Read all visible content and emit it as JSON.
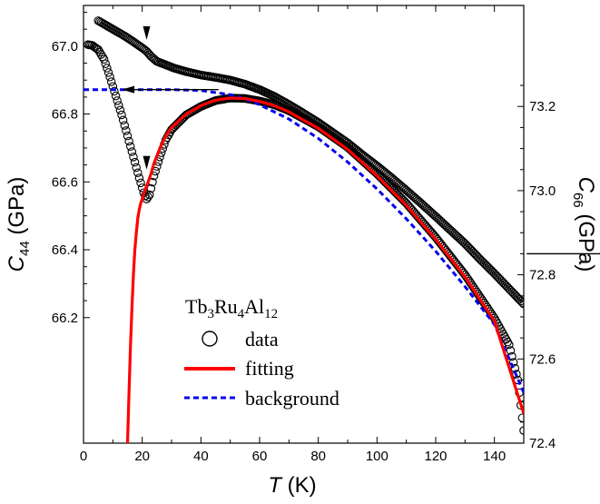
{
  "chart_data": {
    "type": "scatter",
    "x_axis": {
      "label_italic": "T",
      "label_unit": "(K)",
      "range": [
        0,
        150
      ],
      "ticks": [
        0,
        20,
        40,
        60,
        80,
        100,
        120,
        140
      ]
    },
    "y_left": {
      "label_italic": "C",
      "label_sub": "44",
      "label_unit": "(GPa)",
      "range": [
        65.83,
        67.12
      ],
      "ticks": [
        "66.2",
        "66.4",
        "66.6",
        "66.8",
        "67.0"
      ]
    },
    "y_right": {
      "label_italic": "C",
      "label_sub": "66",
      "label_unit": "(GPa)",
      "range": [
        72.4,
        73.44
      ],
      "ticks": [
        "72.4",
        "72.6",
        "72.8",
        "73.0",
        "73.2"
      ]
    },
    "legend": {
      "title_parts": [
        "Tb",
        "3",
        "Ru",
        "4",
        "Al",
        "12"
      ],
      "entries": [
        "data",
        "fitting",
        "background"
      ]
    },
    "series": [
      {
        "name": "data",
        "axis": "left",
        "marker": "open-circle",
        "color": "#000000",
        "x": [
          5,
          8,
          11,
          14,
          17,
          20,
          21.5,
          23,
          25,
          28,
          31,
          35,
          40,
          45,
          50,
          55,
          60,
          65,
          70,
          75,
          80,
          85,
          90,
          95,
          100,
          105,
          110,
          115,
          120,
          125,
          130,
          135,
          140,
          145,
          150
        ],
        "y": [
          67.075,
          67.06,
          67.045,
          67.03,
          67.013,
          66.995,
          66.985,
          66.97,
          66.955,
          66.945,
          66.935,
          66.925,
          66.915,
          66.908,
          66.9,
          66.888,
          66.872,
          66.852,
          66.828,
          66.802,
          66.775,
          66.745,
          66.715,
          66.68,
          66.647,
          66.612,
          66.575,
          66.537,
          66.498,
          66.458,
          66.418,
          66.373,
          66.33,
          66.285,
          66.24
        ]
      },
      {
        "name": "data",
        "axis": "right",
        "marker": "open-circle",
        "color": "#000000",
        "x": [
          1.5,
          3,
          5,
          7,
          9,
          11,
          13,
          15,
          17,
          19,
          20.5,
          21.5,
          22.5,
          24,
          26,
          28,
          30,
          35,
          40,
          45,
          50,
          55,
          60,
          65,
          70,
          80,
          90,
          100,
          110,
          120,
          130,
          140,
          145,
          148,
          150
        ],
        "y": [
          73.347,
          73.345,
          73.335,
          73.312,
          73.27,
          73.225,
          73.18,
          73.13,
          73.08,
          73.03,
          72.995,
          72.98,
          72.99,
          73.035,
          73.08,
          73.12,
          73.145,
          73.18,
          73.2,
          73.214,
          73.22,
          73.219,
          73.213,
          73.204,
          73.19,
          73.152,
          73.103,
          73.04,
          72.97,
          72.889,
          72.8,
          72.697,
          72.634,
          72.55,
          72.43
        ]
      },
      {
        "name": "fitting",
        "axis": "right",
        "color": "#ff0000",
        "x": [
          15,
          15.5,
          16,
          16.5,
          17,
          17.5,
          18,
          18.5,
          19,
          19.5,
          20,
          21,
          22,
          23,
          24,
          26,
          28,
          30,
          35,
          40,
          45,
          50,
          55,
          60,
          65,
          70,
          80,
          90,
          100,
          110,
          120,
          130,
          140,
          150
        ],
        "y": [
          72.4,
          72.52,
          72.63,
          72.72,
          72.8,
          72.86,
          72.9,
          72.935,
          72.955,
          72.97,
          72.98,
          73.002,
          73.02,
          73.04,
          73.065,
          73.1,
          73.13,
          73.15,
          73.182,
          73.202,
          73.215,
          73.22,
          73.219,
          73.212,
          73.202,
          73.187,
          73.148,
          73.098,
          73.035,
          72.965,
          72.884,
          72.795,
          72.69,
          72.47
        ]
      },
      {
        "name": "background",
        "axis": "right",
        "color": "#0000ee",
        "dashed": true,
        "x": [
          0,
          10,
          20,
          30,
          40,
          50,
          55,
          60,
          70,
          80,
          90,
          100,
          110,
          120,
          130,
          140,
          150
        ],
        "y": [
          73.24,
          73.24,
          73.24,
          73.24,
          73.238,
          73.228,
          73.218,
          73.204,
          73.17,
          73.124,
          73.068,
          73.004,
          72.933,
          72.856,
          72.772,
          72.682,
          72.52
        ]
      }
    ],
    "annotations": [
      {
        "type": "arrowhead",
        "axis": "left",
        "x": 21.5,
        "y": 67.0
      },
      {
        "type": "arrowhead",
        "axis": "right",
        "x": 21.5,
        "y": 73.035
      },
      {
        "type": "axis-arrow",
        "direction": "left",
        "axis": "left",
        "x_from": 46,
        "x_to": 13,
        "y": 66.872
      },
      {
        "type": "axis-arrow",
        "direction": "right",
        "axis": "right",
        "x_from": 151,
        "x_to": 183,
        "y": 72.85
      }
    ]
  }
}
